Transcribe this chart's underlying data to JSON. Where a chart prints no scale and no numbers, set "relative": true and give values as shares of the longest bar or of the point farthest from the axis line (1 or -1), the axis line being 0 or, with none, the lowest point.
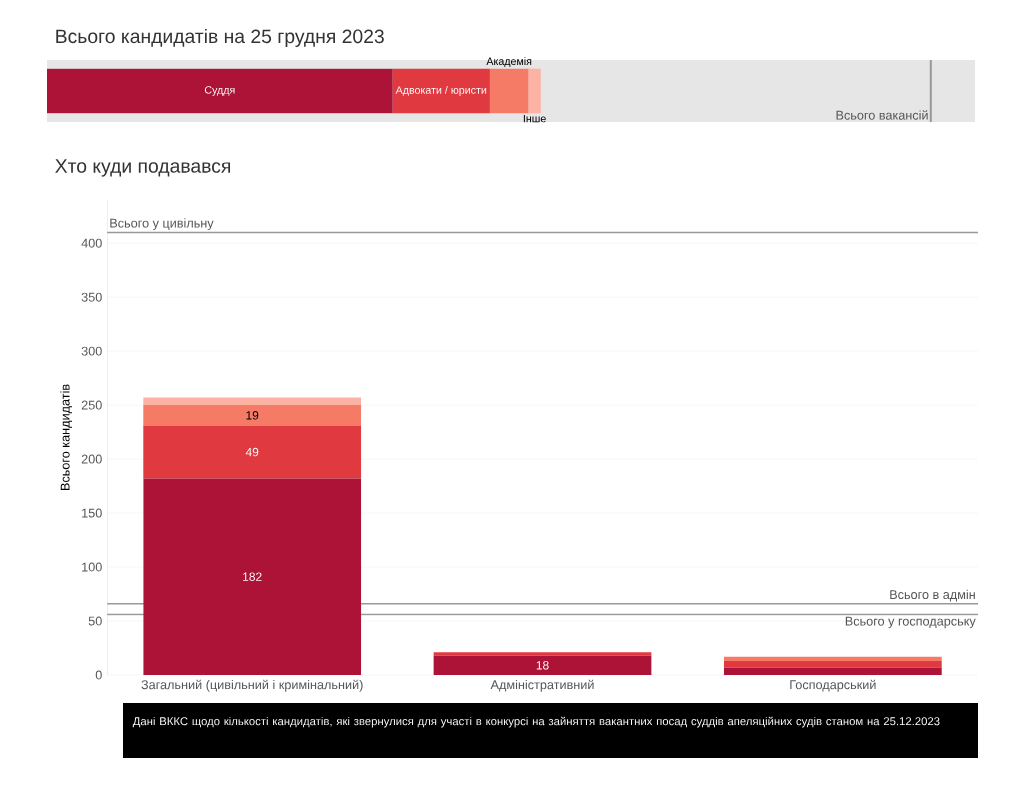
{
  "chart_data": [
    {
      "type": "bar",
      "title": "Всього кандидатів на 25 грудня 2023",
      "orientation": "horizontal",
      "stacked": true,
      "relative": true,
      "categories": [
        null
      ],
      "series": [
        {
          "name": "Суддя",
          "color": "#ad1237",
          "values": [
            0.7
          ]
        },
        {
          "name": "Адвокати / юристи",
          "color": "#e03a40",
          "values": [
            0.197
          ]
        },
        {
          "name": "Академія",
          "color": "#f67b66",
          "values": [
            0.078
          ]
        },
        {
          "name": "Інше",
          "color": "#fcb3a3",
          "values": [
            0.025
          ]
        }
      ],
      "ref_lines": [
        {
          "axis": "x",
          "value": 1.79,
          "label": "Всього вакансій",
          "color": "#999999"
        }
      ]
    },
    {
      "type": "bar",
      "title": "Хто куди подавався",
      "ylabel": "Всього кандидатів",
      "stacked": true,
      "categories": [
        "Загальний (цивільний і кримінальний)",
        "Адміністративний",
        "Господарський"
      ],
      "series": [
        {
          "color": "#ad1237",
          "values": [
            182,
            18,
            7
          ],
          "value_labels": [
            "182",
            "18",
            null
          ]
        },
        {
          "color": "#e03a40",
          "values": [
            49,
            3,
            6
          ],
          "value_labels": [
            "49",
            null,
            null
          ]
        },
        {
          "color": "#f67b66",
          "values": [
            19,
            0,
            4
          ],
          "value_labels": [
            "19",
            null,
            null
          ]
        },
        {
          "color": "#fcb3a3",
          "values": [
            7,
            0,
            0
          ],
          "value_labels": [
            null,
            null,
            null
          ]
        }
      ],
      "ylim": [
        0,
        440
      ],
      "yticks": [
        0,
        50,
        100,
        150,
        200,
        250,
        300,
        350,
        400
      ],
      "grid": "y",
      "ref_lines": [
        {
          "axis": "y",
          "value": 410,
          "label": "Всього у цивільну",
          "color": "#999999"
        },
        {
          "axis": "y",
          "value": 66,
          "label": "Всього в адмін",
          "color": "#999999"
        },
        {
          "axis": "y",
          "value": 56,
          "label": "Всього у господарську",
          "color": "#999999"
        }
      ],
      "annotations": [
        "Дані ВККС щодо кількості кандидатів, які звернулися для участі в конкурсі на зайняття вакантних посад суддів апеляційних судів станом на 25.12.2023"
      ]
    }
  ]
}
